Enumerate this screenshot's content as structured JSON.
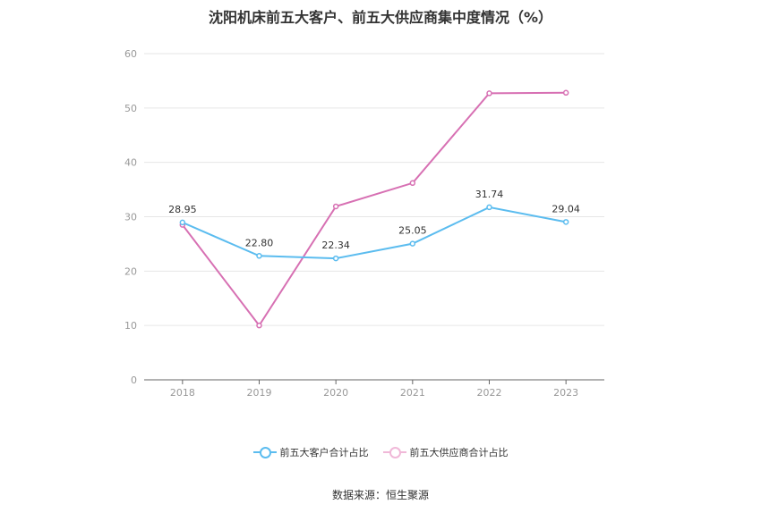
{
  "title": "沈阳机床前五大客户、前五大供应商集中度情况（%）",
  "source": "数据来源：恒生聚源",
  "chart_data": {
    "type": "line",
    "title": "沈阳机床前五大客户、前五大供应商集中度情况（%）",
    "categories": [
      "2018",
      "2019",
      "2020",
      "2021",
      "2022",
      "2023"
    ],
    "ylim": [
      0,
      60
    ],
    "yticks": [
      0,
      10,
      20,
      30,
      40,
      50,
      60
    ],
    "grid": true,
    "legend_position": "bottom",
    "series": [
      {
        "name": "前五大客户合计占比",
        "color": "#5bbcef",
        "values": [
          28.95,
          22.8,
          22.34,
          25.05,
          31.74,
          29.04
        ],
        "labels": [
          "28.95",
          "22.80",
          "22.34",
          "25.05",
          "31.74",
          "29.04"
        ]
      },
      {
        "name": "前五大供应商合计占比",
        "color": "#d770b3",
        "values": [
          28.5,
          10.0,
          31.9,
          36.2,
          52.7,
          52.8
        ]
      }
    ]
  }
}
